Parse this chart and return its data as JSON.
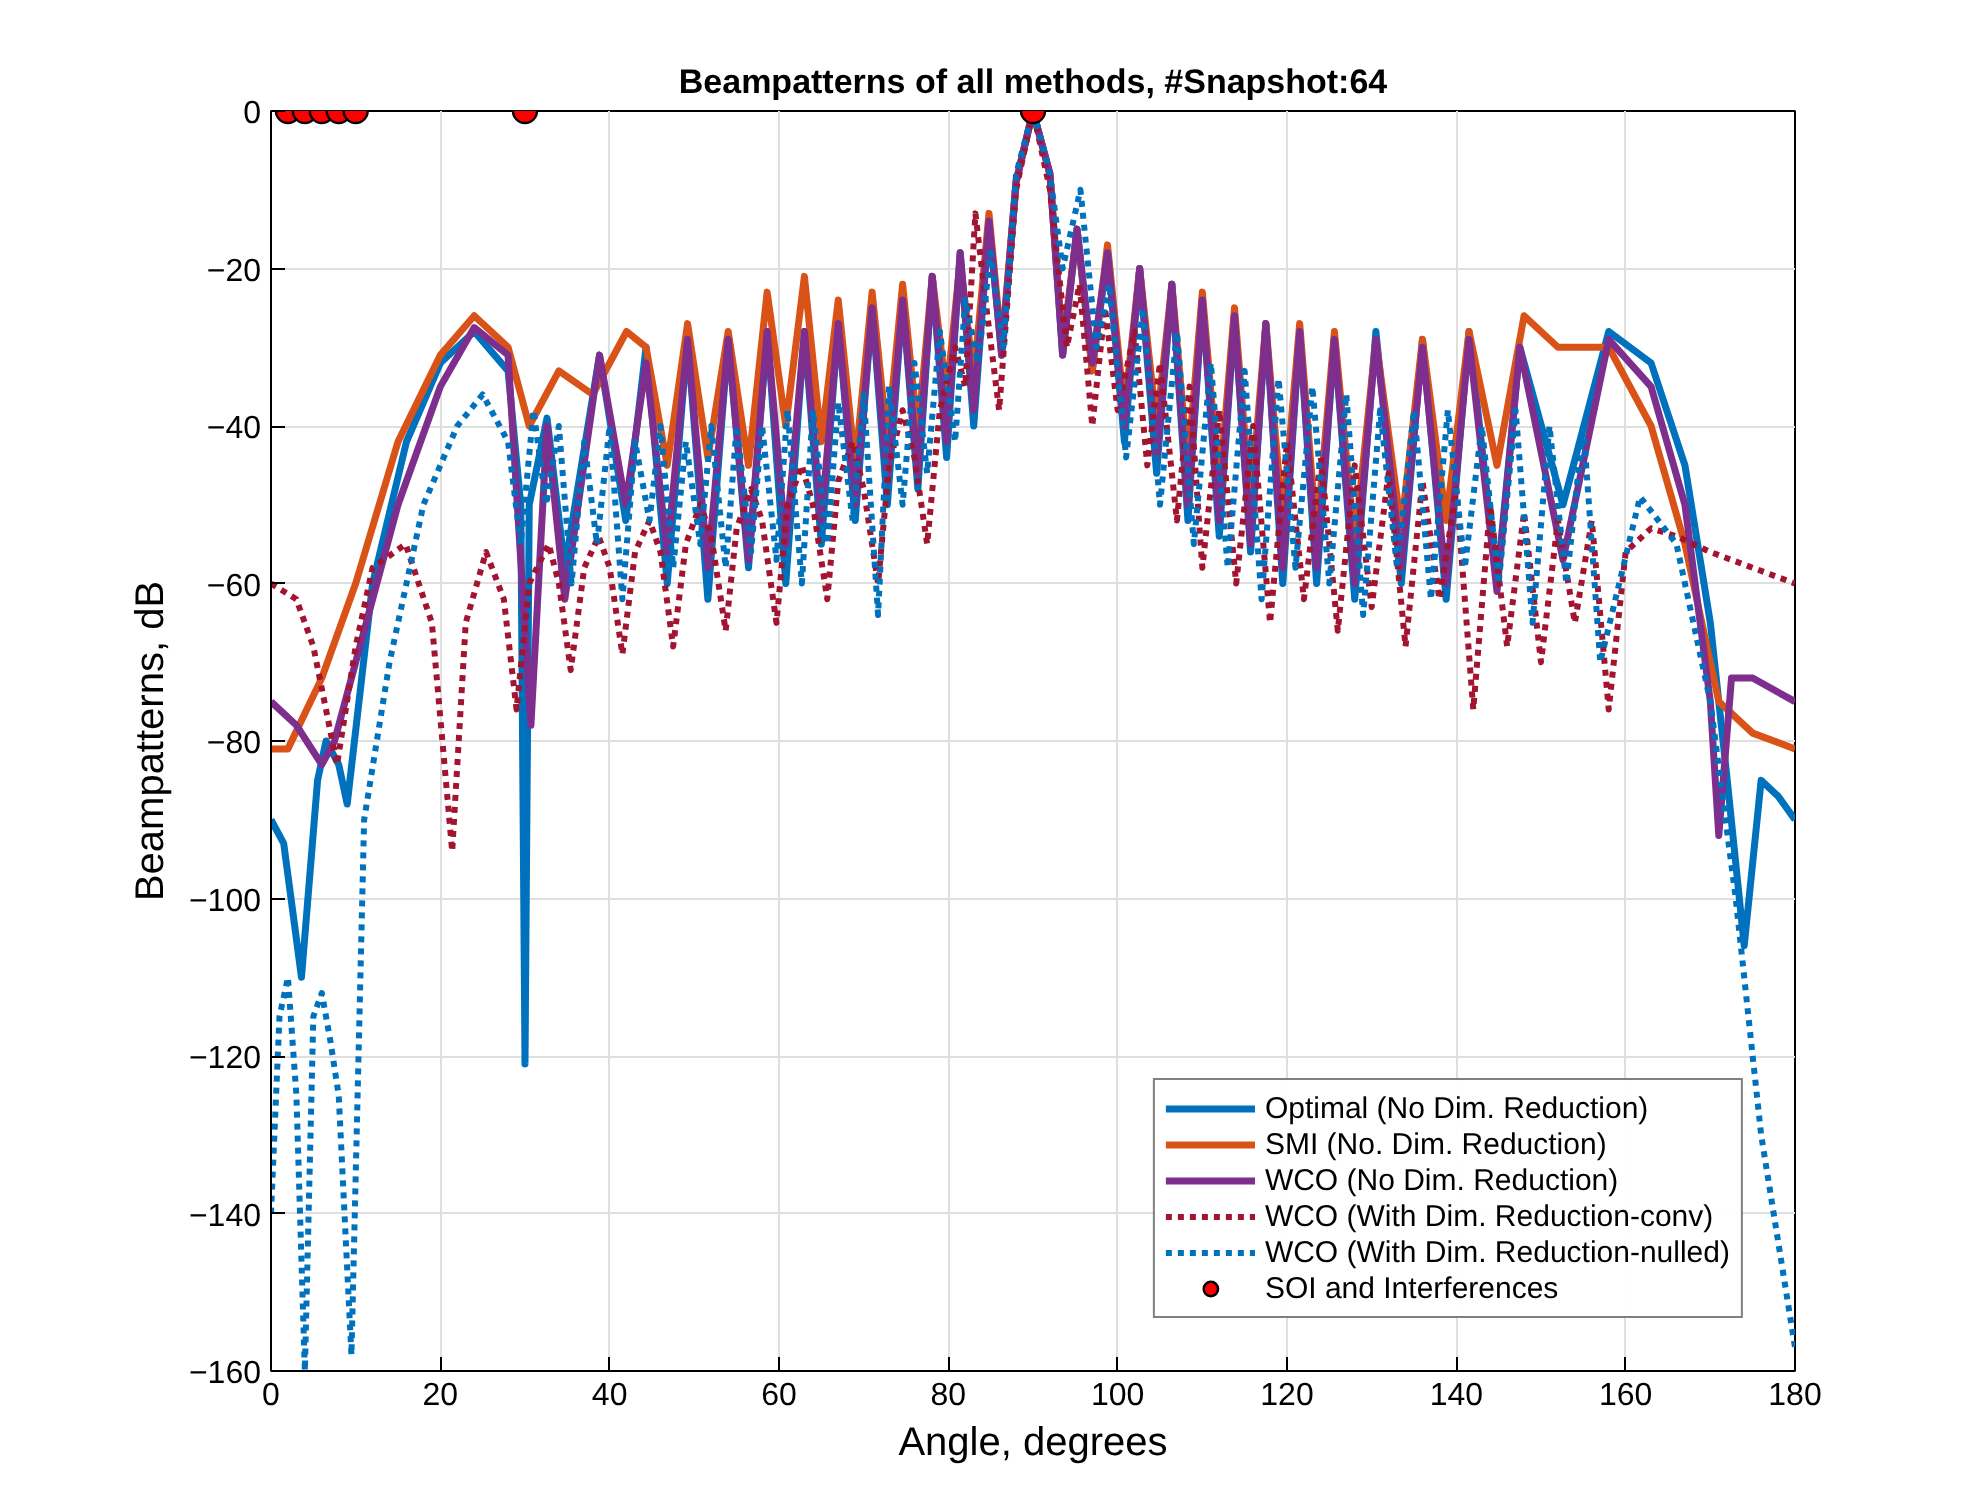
{
  "chart_data": {
    "type": "line",
    "title": "Beampatterns of all methods, #Snapshot:64",
    "xlabel": "Angle, degrees",
    "ylabel": "Beampatterns, dB",
    "xlim": [
      0,
      180
    ],
    "ylim": [
      -160,
      0
    ],
    "xticks": [
      0,
      20,
      40,
      60,
      80,
      100,
      120,
      140,
      160,
      180
    ],
    "yticks": [
      -160,
      -140,
      -120,
      -100,
      -80,
      -60,
      -40,
      -20,
      0
    ],
    "grid": true,
    "legend": "bottom right",
    "series": [
      {
        "name": "Optimal (No Dim. Reduction)",
        "color": "#0072bd",
        "line_style": "solid",
        "x": [
          0,
          1.5,
          3.6,
          5.5,
          6.5,
          8,
          9,
          12,
          16,
          20,
          24,
          28,
          29.5,
          30,
          30.5,
          32.6,
          34.7,
          38.8,
          41.9,
          44.3,
          46.8,
          49.2,
          51.6,
          54,
          56.4,
          58.6,
          60.8,
          63,
          65,
          67,
          69,
          71,
          72.8,
          74.6,
          76.4,
          78.1,
          79.8,
          81.4,
          83,
          84.8,
          86.3,
          88,
          90,
          92,
          93.5,
          95.2,
          97,
          98.8,
          100.8,
          102.6,
          104.6,
          106.4,
          108.3,
          110,
          112,
          113.8,
          115.7,
          117.5,
          119.5,
          121.5,
          123.5,
          125.6,
          128,
          130.5,
          133.5,
          136,
          138.8,
          141.5,
          144.8,
          147.5,
          152.6,
          158,
          163,
          167,
          170,
          172,
          174,
          176,
          178,
          180
        ],
        "values": [
          -90,
          -93,
          -110,
          -85,
          -80,
          -83,
          -88,
          -60,
          -42,
          -32,
          -28,
          -33,
          -50,
          -121,
          -50,
          -39,
          -58,
          -31,
          -52,
          -30,
          -60,
          -29,
          -62,
          -29,
          -58,
          -28,
          -60,
          -28,
          -55,
          -27,
          -52,
          -25,
          -50,
          -24,
          -48,
          -21,
          -44,
          -18,
          -40,
          -14,
          -31,
          -9,
          0,
          -8,
          -31,
          -15,
          -33,
          -18,
          -42,
          -20,
          -46,
          -22,
          -52,
          -24,
          -54,
          -26,
          -56,
          -27,
          -60,
          -28,
          -60,
          -29,
          -62,
          -28,
          -60,
          -29,
          -62,
          -28,
          -60,
          -30,
          -50,
          -28,
          -32,
          -45,
          -65,
          -85,
          -106,
          -85,
          -87,
          -90
        ]
      },
      {
        "name": "SMI (No. Dim. Reduction)",
        "color": "#d95319",
        "line_style": "solid",
        "x": [
          0,
          2,
          6,
          10,
          15,
          20,
          24,
          28,
          30.5,
          34,
          38,
          42,
          44.3,
          46.8,
          49.2,
          51.6,
          54,
          56.4,
          58.6,
          60.8,
          63,
          65,
          67,
          69,
          71,
          72.8,
          74.6,
          76.4,
          78.1,
          79.8,
          81.4,
          83,
          84.8,
          86.3,
          88,
          90,
          92,
          93.5,
          95.2,
          97,
          98.8,
          100.8,
          102.6,
          104.6,
          106.4,
          108.3,
          110,
          112,
          113.8,
          115.7,
          117.5,
          119.5,
          121.5,
          123.5,
          125.6,
          128,
          130.5,
          133.5,
          136,
          138.8,
          141.5,
          144.8,
          148,
          152,
          158,
          163,
          167,
          171,
          175,
          180
        ],
        "values": [
          -81,
          -81,
          -72,
          -60,
          -42,
          -31,
          -26,
          -30,
          -40,
          -33,
          -36,
          -28,
          -30,
          -45,
          -27,
          -44,
          -28,
          -45,
          -23,
          -40,
          -21,
          -42,
          -24,
          -45,
          -23,
          -42,
          -22,
          -41,
          -21,
          -36,
          -19,
          -34,
          -13,
          -30,
          -9,
          0,
          -8,
          -30,
          -15,
          -33,
          -17,
          -38,
          -20,
          -40,
          -22,
          -45,
          -23,
          -48,
          -25,
          -50,
          -27,
          -52,
          -27,
          -54,
          -28,
          -55,
          -29,
          -53,
          -29,
          -52,
          -28,
          -45,
          -26,
          -30,
          -30,
          -40,
          -55,
          -75,
          -79,
          -81
        ]
      },
      {
        "name": "WCO (No Dim. Reduction)",
        "color": "#7e2f8e",
        "line_style": "solid",
        "x": [
          0,
          3,
          6,
          7.5,
          10,
          15,
          20,
          24,
          28,
          30.7,
          32.6,
          34.7,
          38.8,
          41.9,
          44.3,
          46.8,
          49.2,
          51.6,
          54,
          56.4,
          58.6,
          60.8,
          63,
          65,
          67,
          69,
          71,
          72.8,
          74.6,
          76.4,
          78.1,
          79.8,
          81.4,
          83,
          84.8,
          86.3,
          88,
          90,
          92,
          93.5,
          95.2,
          97,
          98.8,
          100.8,
          102.6,
          104.6,
          106.4,
          108.3,
          110,
          112,
          113.8,
          115.7,
          117.5,
          119.5,
          121.5,
          123.5,
          125.6,
          128,
          130.5,
          133.5,
          136,
          138.8,
          141.5,
          144.8,
          147.5,
          152.6,
          158,
          163,
          167,
          170,
          171,
          172.5,
          175,
          180
        ],
        "values": [
          -75,
          -78,
          -83,
          -80,
          -70,
          -50,
          -35,
          -27.5,
          -31,
          -78,
          -40,
          -62,
          -31,
          -50,
          -32,
          -56,
          -29,
          -58,
          -29,
          -57,
          -28,
          -55,
          -28,
          -52,
          -27,
          -50,
          -25,
          -47,
          -24,
          -46,
          -21,
          -42,
          -18,
          -38,
          -14,
          -31,
          -9,
          0,
          -8,
          -31,
          -15,
          -32,
          -18,
          -40,
          -20,
          -44,
          -22,
          -50,
          -24,
          -52,
          -26,
          -55,
          -27,
          -58,
          -28,
          -58,
          -29,
          -60,
          -29,
          -58,
          -30,
          -60,
          -29,
          -61,
          -30,
          -57,
          -29,
          -35,
          -50,
          -75,
          -92,
          -72,
          -72,
          -75
        ]
      },
      {
        "name": "WCO (With Dim. Reduction-conv)",
        "color": "#a2142f",
        "line_style": "dotted",
        "x": [
          0,
          3,
          5,
          7.8,
          10,
          12,
          15.9,
          19,
          21.4,
          23,
          25.4,
          27.5,
          29,
          30.5,
          32.8,
          34,
          35.4,
          37,
          38.7,
          40,
          41.5,
          43,
          44.7,
          46,
          47.5,
          49,
          50.7,
          52,
          53.7,
          55,
          56.7,
          58,
          59.7,
          61,
          62.7,
          64,
          65.7,
          67,
          68.7,
          70,
          71.7,
          73,
          74.6,
          76,
          77.5,
          79,
          80.8,
          82,
          83.2,
          84.5,
          86,
          88,
          90,
          92,
          94,
          95.5,
          97,
          98.5,
          100,
          102,
          103.5,
          105,
          107,
          108.5,
          110,
          112,
          114,
          116,
          118,
          120,
          122,
          124,
          126,
          128,
          130,
          132,
          134,
          136,
          138,
          140,
          142,
          144,
          146,
          148,
          150,
          152,
          154,
          156,
          158,
          160,
          163,
          166,
          170,
          175,
          180
        ],
        "values": [
          -60,
          -62,
          -68,
          -83,
          -68,
          -58,
          -55,
          -65,
          -94,
          -65,
          -56,
          -62,
          -76,
          -60,
          -55,
          -60,
          -71,
          -58,
          -54,
          -58,
          -69,
          -56,
          -52,
          -56,
          -68,
          -55,
          -50,
          -54,
          -66,
          -53,
          -48,
          -52,
          -65,
          -50,
          -45,
          -50,
          -62,
          -47,
          -42,
          -48,
          -60,
          -45,
          -38,
          -44,
          -55,
          -38,
          -30,
          -35,
          -13,
          -25,
          -38,
          -10,
          0,
          -10,
          -30,
          -22,
          -40,
          -25,
          -38,
          -28,
          -45,
          -32,
          -52,
          -35,
          -58,
          -38,
          -60,
          -40,
          -65,
          -42,
          -62,
          -44,
          -66,
          -45,
          -63,
          -46,
          -68,
          -47,
          -62,
          -48,
          -76,
          -50,
          -68,
          -51,
          -70,
          -52,
          -65,
          -52,
          -76,
          -56,
          -53,
          -54,
          -56,
          -58,
          -60
        ]
      },
      {
        "name": "WCO (With Dim. Reduction-nulled)",
        "color": "#0072bd",
        "line_style": "dotted",
        "x": [
          0,
          1,
          2,
          3,
          4,
          5,
          6,
          7,
          8,
          9.5,
          11,
          14,
          18,
          22,
          25,
          28,
          29.5,
          31,
          32.5,
          34,
          35.5,
          37,
          38.5,
          40,
          41.5,
          43,
          44.7,
          46,
          47.5,
          49,
          50.7,
          52,
          53.7,
          55,
          56.7,
          58,
          59.7,
          61,
          62.7,
          64,
          65.7,
          67,
          68.7,
          70,
          71.7,
          73,
          74.6,
          76,
          77.5,
          79,
          80.8,
          82,
          83.5,
          85,
          86.5,
          88,
          90,
          92,
          93.5,
          95.6,
          97.5,
          99,
          101,
          103,
          105,
          107,
          109,
          111,
          113,
          115,
          117,
          119,
          121,
          123,
          125,
          127,
          129,
          131,
          133,
          135,
          137,
          139,
          141,
          143,
          145,
          147,
          149,
          151,
          153,
          155,
          157,
          161.7,
          166,
          170,
          173,
          176,
          180
        ],
        "values": [
          -140,
          -115,
          -110,
          -125,
          -160,
          -115,
          -112,
          -118,
          -125,
          -158,
          -90,
          -70,
          -50,
          -40,
          -36,
          -42,
          -55,
          -38,
          -50,
          -40,
          -60,
          -42,
          -55,
          -40,
          -62,
          -42,
          -52,
          -40,
          -58,
          -42,
          -55,
          -40,
          -58,
          -40,
          -56,
          -40,
          -57,
          -38,
          -60,
          -38,
          -55,
          -37,
          -52,
          -36,
          -64,
          -35,
          -50,
          -32,
          -46,
          -28,
          -42,
          -24,
          -32,
          -18,
          -30,
          -8,
          0,
          -8,
          -20,
          -10,
          -30,
          -22,
          -44,
          -25,
          -50,
          -28,
          -55,
          -32,
          -58,
          -33,
          -62,
          -34,
          -58,
          -35,
          -60,
          -36,
          -64,
          -38,
          -58,
          -38,
          -62,
          -38,
          -58,
          -40,
          -60,
          -38,
          -65,
          -40,
          -60,
          -40,
          -70,
          -49,
          -55,
          -75,
          -100,
          -130,
          -157
        ]
      },
      {
        "name": "SOI and Interferences",
        "type": "scatter",
        "marker": "circle",
        "color": "#ff0000",
        "x": [
          2,
          4,
          6,
          8,
          10,
          30,
          90
        ],
        "values": [
          0,
          0,
          0,
          0,
          0,
          0,
          0
        ]
      }
    ]
  }
}
